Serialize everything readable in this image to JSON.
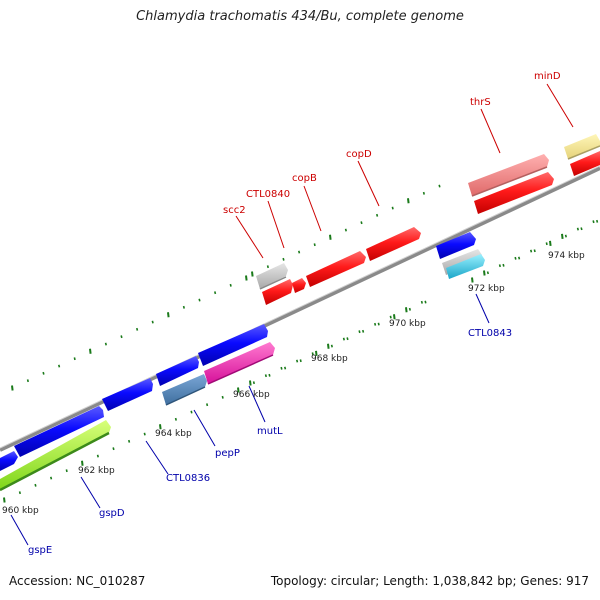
{
  "title": "Chlamydia trachomatis 434/Bu, complete genome",
  "footer": {
    "accession": "Accession: NC_010287",
    "summary": "Topology: circular; Length: 1,038,842 bp; Genes: 917"
  },
  "colors": {
    "forward_label": "#cc0000",
    "reverse_label": "#0000aa",
    "backbone": "#8a8a8a",
    "tick": "#1a7a1a"
  },
  "kbp_labels": [
    "960 kbp",
    "962 kbp",
    "964 kbp",
    "966 kbp",
    "968 kbp",
    "970 kbp",
    "972 kbp",
    "974 kbp"
  ],
  "forward_gene_labels": [
    "scc2",
    "CTL0840",
    "copB",
    "copD",
    "thrS",
    "minD"
  ],
  "reverse_gene_labels": [
    "gspE",
    "gspD",
    "CTL0836",
    "pepP",
    "mutL",
    "CTL0843"
  ]
}
